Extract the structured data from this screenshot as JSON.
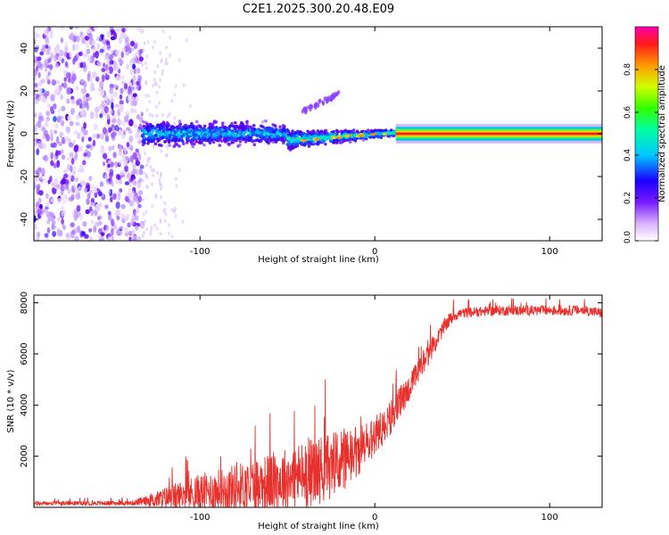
{
  "figure_title": "C2E1.2025.300.20.48.E09",
  "colors": {
    "snr_line": "#e8302c",
    "track": "#ff2a00",
    "background": "#ffffff"
  },
  "chart_data": [
    {
      "type": "heatmap",
      "title": "C2E1.2025.300.20.48.E09",
      "xlabel": "Height of straight line (km)",
      "ylabel": "Frequency (Hz)",
      "xlim": [
        -195,
        130
      ],
      "ylim": [
        -50,
        50
      ],
      "xticks": [
        -100,
        0,
        100
      ],
      "xtick_labels": [
        "-100",
        "0",
        "100"
      ],
      "yticks": [
        -40,
        -20,
        0,
        20,
        40
      ],
      "ytick_labels": [
        "-40",
        "-20",
        "0",
        "20",
        "40"
      ],
      "colorbar": {
        "label": "Normalized spectral amplitude",
        "range": [
          0,
          1
        ],
        "ticks": [
          0,
          0.2,
          0.4,
          0.6,
          0.8
        ],
        "tick_labels": [
          "0.0",
          "0.2",
          "0.4",
          "0.6",
          "0.8"
        ]
      },
      "regions": [
        {
          "description": "noise",
          "x_range": [
            -195,
            -133
          ],
          "f_range": [
            -50,
            50
          ],
          "amplitude": 0.15
        },
        {
          "description": "sparse noise",
          "x_range": [
            -133,
            -105
          ],
          "f_range": [
            -50,
            50
          ],
          "amplitude": 0.05
        },
        {
          "description": "broadening signal",
          "x_range": [
            -133,
            -50
          ],
          "f_range": [
            -8,
            8
          ],
          "amplitude": 0.35
        },
        {
          "description": "converging signal",
          "x_range": [
            -50,
            12
          ],
          "f_range": [
            -4,
            4
          ],
          "amplitude": 0.55
        },
        {
          "description": "stable carrier",
          "x_range": [
            12,
            130
          ],
          "f_range": [
            -1,
            1
          ],
          "amplitude": 0.95
        }
      ]
    },
    {
      "type": "line",
      "xlabel": "Height of straight line (km)",
      "ylabel": "SNR (10 * v/v)",
      "xlim": [
        -195,
        130
      ],
      "ylim": [
        0,
        8300
      ],
      "xticks": [
        -100,
        0,
        100
      ],
      "xtick_labels": [
        "-100",
        "0",
        "100"
      ],
      "yticks": [
        2000,
        4000,
        6000,
        8000
      ],
      "ytick_labels": [
        "2000",
        "4000",
        "6000",
        "8000"
      ],
      "series": [
        {
          "name": "SNR",
          "x": [
            -195,
            -140,
            -130,
            -120,
            -110,
            -100,
            -90,
            -80,
            -70,
            -60,
            -50,
            -40,
            -30,
            -20,
            -10,
            -5,
            0,
            5,
            10,
            15,
            20,
            25,
            30,
            35,
            40,
            45,
            50,
            60,
            70,
            80,
            90,
            100,
            110,
            120,
            130
          ],
          "mean": [
            150,
            170,
            250,
            350,
            480,
            560,
            650,
            750,
            860,
            980,
            1120,
            1300,
            1500,
            1750,
            2100,
            2400,
            2800,
            3100,
            3600,
            4200,
            4700,
            5300,
            5900,
            6500,
            7100,
            7500,
            7600,
            7650,
            7700,
            7700,
            7700,
            7700,
            7700,
            7700,
            7600
          ],
          "spread": [
            80,
            90,
            200,
            450,
            600,
            750,
            850,
            950,
            1050,
            1150,
            1250,
            1350,
            1350,
            1300,
            1100,
            900,
            800,
            700,
            650,
            600,
            550,
            500,
            450,
            350,
            300,
            250,
            200,
            200,
            200,
            200,
            200,
            200,
            200,
            200,
            200
          ]
        }
      ]
    }
  ]
}
